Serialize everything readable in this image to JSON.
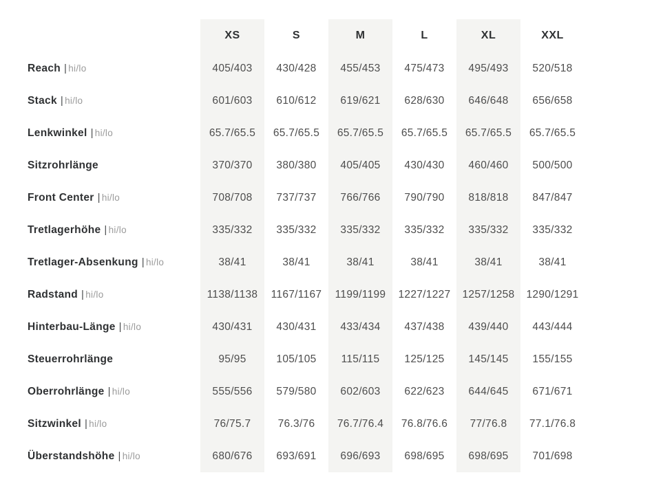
{
  "table": {
    "separator": "|",
    "sizes": [
      "XS",
      "S",
      "M",
      "L",
      "XL",
      "XXL"
    ],
    "rows": [
      {
        "label": "Reach",
        "suffix": "hi/lo",
        "values": [
          "405/403",
          "430/428",
          "455/453",
          "475/473",
          "495/493",
          "520/518"
        ]
      },
      {
        "label": "Stack",
        "suffix": "hi/lo",
        "values": [
          "601/603",
          "610/612",
          "619/621",
          "628/630",
          "646/648",
          "656/658"
        ]
      },
      {
        "label": "Lenkwinkel",
        "suffix": "hi/lo",
        "values": [
          "65.7/65.5",
          "65.7/65.5",
          "65.7/65.5",
          "65.7/65.5",
          "65.7/65.5",
          "65.7/65.5"
        ]
      },
      {
        "label": "Sitzrohrlänge",
        "suffix": "",
        "values": [
          "370/370",
          "380/380",
          "405/405",
          "430/430",
          "460/460",
          "500/500"
        ]
      },
      {
        "label": "Front Center",
        "suffix": "hi/lo",
        "values": [
          "708/708",
          "737/737",
          "766/766",
          "790/790",
          "818/818",
          "847/847"
        ]
      },
      {
        "label": "Tretlagerhöhe",
        "suffix": "hi/lo",
        "values": [
          "335/332",
          "335/332",
          "335/332",
          "335/332",
          "335/332",
          "335/332"
        ]
      },
      {
        "label": "Tretlager-Absenkung",
        "suffix": "hi/lo",
        "values": [
          "38/41",
          "38/41",
          "38/41",
          "38/41",
          "38/41",
          "38/41"
        ]
      },
      {
        "label": "Radstand",
        "suffix": "hi/lo",
        "values": [
          "1138/1138",
          "1167/1167",
          "1199/1199",
          "1227/1227",
          "1257/1258",
          "1290/1291"
        ]
      },
      {
        "label": "Hinterbau-Länge",
        "suffix": "hi/lo",
        "values": [
          "430/431",
          "430/431",
          "433/434",
          "437/438",
          "439/440",
          "443/444"
        ]
      },
      {
        "label": "Steuerrohrlänge",
        "suffix": "",
        "values": [
          "95/95",
          "105/105",
          "115/115",
          "125/125",
          "145/145",
          "155/155"
        ]
      },
      {
        "label": "Oberrohrlänge",
        "suffix": "hi/lo",
        "values": [
          "555/556",
          "579/580",
          "602/603",
          "622/623",
          "644/645",
          "671/671"
        ]
      },
      {
        "label": "Sitzwinkel",
        "suffix": "hi/lo",
        "values": [
          "76/75.7",
          "76.3/76",
          "76.7/76.4",
          "76.8/76.6",
          "77/76.8",
          "77.1/76.8"
        ]
      },
      {
        "label": "Überstandshöhe",
        "suffix": "hi/lo",
        "values": [
          "680/676",
          "693/691",
          "696/693",
          "698/695",
          "698/695",
          "701/698"
        ]
      }
    ],
    "colors": {
      "stripe": "#f4f4f2",
      "label_text": "#2f3133",
      "suffix_text": "#9a9a9a",
      "value_text": "#4d4d4d",
      "header_text": "#2f3133",
      "background": "#ffffff"
    }
  }
}
